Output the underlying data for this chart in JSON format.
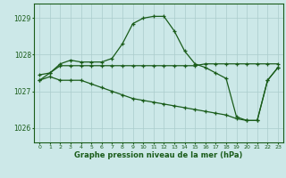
{
  "xlabel": "Graphe pression niveau de la mer (hPa)",
  "background_color": "#cce8e8",
  "grid_color": "#aacccc",
  "line_color": "#1a5c1a",
  "xlim": [
    -0.5,
    23.5
  ],
  "ylim": [
    1025.6,
    1029.4
  ],
  "yticks": [
    1026,
    1027,
    1028,
    1029
  ],
  "xticks": [
    0,
    1,
    2,
    3,
    4,
    5,
    6,
    7,
    8,
    9,
    10,
    11,
    12,
    13,
    14,
    15,
    16,
    17,
    18,
    19,
    20,
    21,
    22,
    23
  ],
  "line1": [
    1027.3,
    1027.5,
    1027.75,
    1027.85,
    1027.8,
    1027.8,
    1027.8,
    1027.9,
    1028.3,
    1028.85,
    1029.0,
    1029.05,
    1029.05,
    1028.65,
    1028.1,
    1027.75,
    1027.65,
    1027.5,
    1027.35,
    1026.3,
    1026.2,
    1026.2,
    1027.3,
    1027.65
  ],
  "line2": [
    1027.45,
    1027.5,
    1027.7,
    1027.7,
    1027.7,
    1027.7,
    1027.7,
    1027.7,
    1027.7,
    1027.7,
    1027.7,
    1027.7,
    1027.7,
    1027.7,
    1027.7,
    1027.7,
    1027.75,
    1027.75,
    1027.75,
    1027.75,
    1027.75,
    1027.75,
    1027.75,
    1027.75
  ],
  "line3": [
    1027.3,
    1027.4,
    1027.3,
    1027.3,
    1027.3,
    1027.2,
    1027.1,
    1027.0,
    1026.9,
    1026.8,
    1026.75,
    1026.7,
    1026.65,
    1026.6,
    1026.55,
    1026.5,
    1026.45,
    1026.4,
    1026.35,
    1026.25,
    1026.2,
    1026.2,
    1027.3,
    1027.65
  ]
}
